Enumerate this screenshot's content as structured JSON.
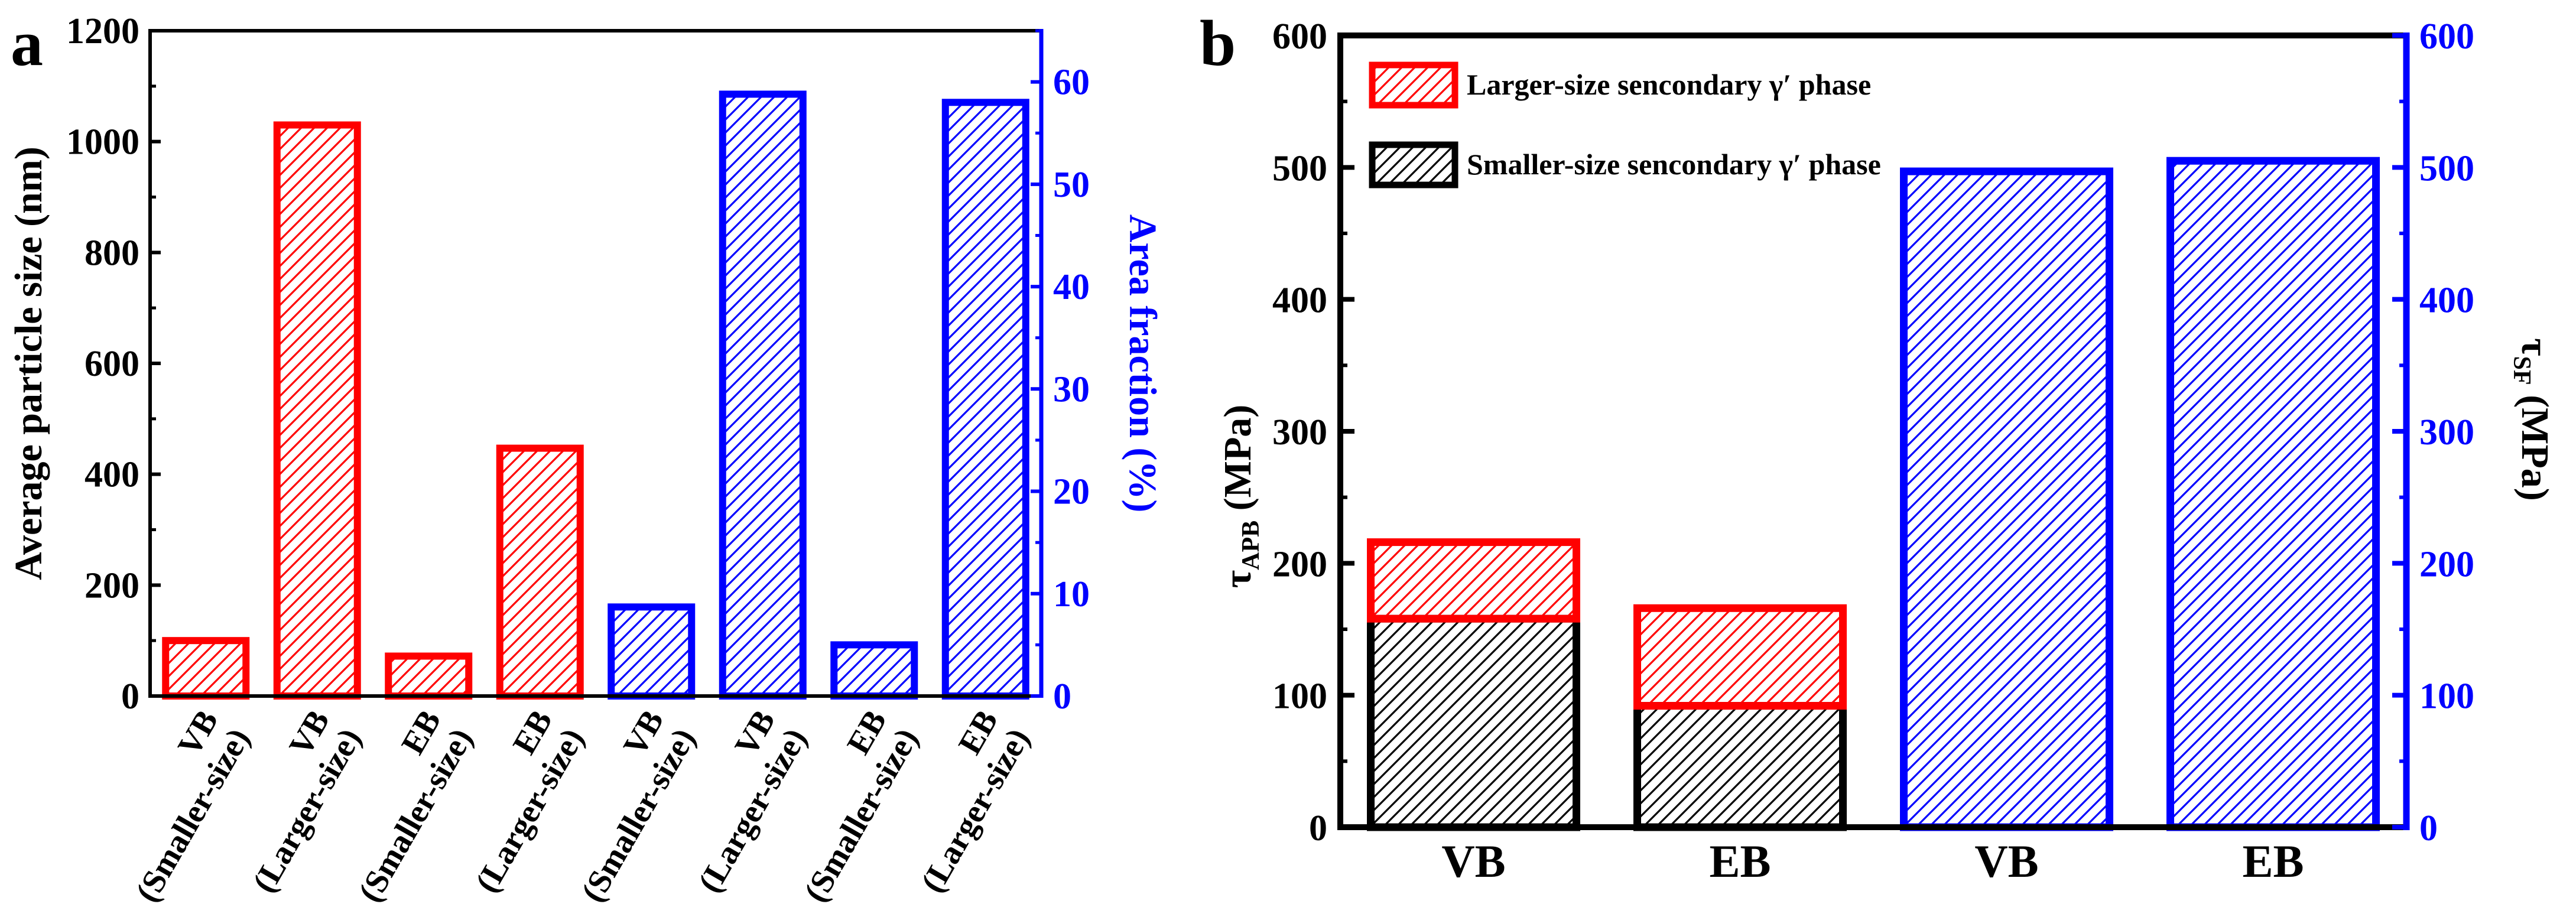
{
  "colors": {
    "red": "#ff0000",
    "blue": "#0000ff",
    "black": "#000000"
  },
  "chart_data": [
    {
      "panel": "a",
      "type": "bar",
      "title": "",
      "xlabel": "",
      "ylabel": "Average particle size (nm)",
      "ylabel_right": "Area fraction (%)",
      "ylim": [
        0,
        1200
      ],
      "ylim_right": [
        0,
        65
      ],
      "yticks": [
        0,
        200,
        400,
        600,
        800,
        1000,
        1200
      ],
      "yticks_right": [
        0,
        10,
        20,
        30,
        40,
        50,
        60
      ],
      "categories": [
        {
          "main": "VB",
          "sub": "(Smaller-size)"
        },
        {
          "main": "VB",
          "sub": "(Larger-size)"
        },
        {
          "main": "EB",
          "sub": "(Smaller-size)"
        },
        {
          "main": "EB",
          "sub": "(Larger-size)"
        },
        {
          "main": "VB",
          "sub": "(Smaller-size)"
        },
        {
          "main": "VB",
          "sub": "(Larger-size)"
        },
        {
          "main": "EB",
          "sub": "(Smaller-size)"
        },
        {
          "main": "EB",
          "sub": "(Larger-size)"
        }
      ],
      "series": [
        {
          "name": "Average particle size",
          "axis": "left",
          "color": "red",
          "values": [
            100,
            1030,
            72,
            447,
            null,
            null,
            null,
            null
          ]
        },
        {
          "name": "Area fraction",
          "axis": "right",
          "color": "blue",
          "values": [
            null,
            null,
            null,
            null,
            8.7,
            58.8,
            5.0,
            58.0
          ]
        }
      ]
    },
    {
      "panel": "b",
      "type": "bar",
      "title": "",
      "xlabel": "",
      "ylabel": "τ",
      "ylabel_sub": "APB",
      "ylabel_unit": " (MPa)",
      "ylabel_right": "τ",
      "ylabel_right_sub": "SF",
      "ylabel_right_unit": " (MPa)",
      "ylim": [
        0,
        600
      ],
      "ylim_right": [
        0,
        600
      ],
      "yticks": [
        0,
        100,
        200,
        300,
        400,
        500,
        600
      ],
      "yticks_right": [
        0,
        100,
        200,
        300,
        400,
        500,
        600
      ],
      "categories": [
        "VB",
        "EB",
        "VB",
        "EB"
      ],
      "legend_position": "top-left",
      "series": [
        {
          "name": "Smaller-size sencondary γ′ phase",
          "axis": "left",
          "color": "black",
          "stack": "s",
          "values": [
            158,
            92,
            null,
            null
          ]
        },
        {
          "name": "Larger-size sencondary γ′ phase",
          "axis": "left",
          "color": "red",
          "stack": "s",
          "values": [
            58,
            74,
            null,
            null
          ]
        },
        {
          "name": "τSF",
          "axis": "right",
          "color": "blue",
          "values": [
            null,
            null,
            497,
            505
          ]
        }
      ],
      "legend": [
        {
          "label": "Larger-size sencondary γ′ phase",
          "color": "red"
        },
        {
          "label": "Smaller-size sencondary γ′ phase",
          "color": "black"
        }
      ]
    }
  ]
}
